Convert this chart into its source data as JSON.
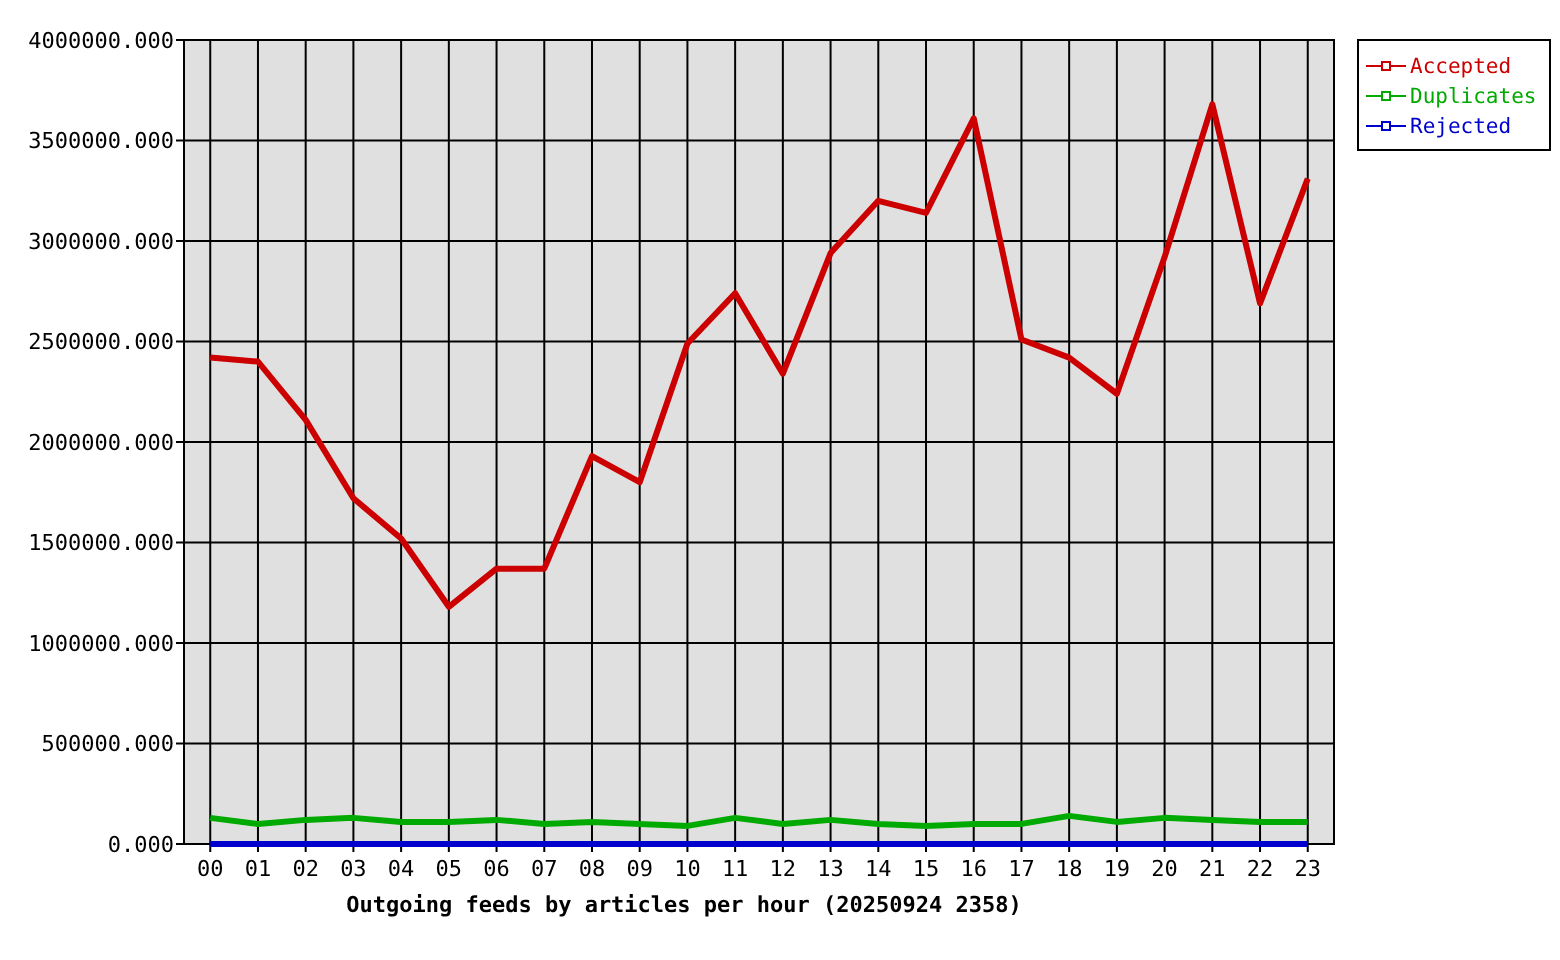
{
  "chart_data": {
    "type": "line",
    "title": "Outgoing feeds by articles per hour (20250924 2358)",
    "categories": [
      "00",
      "01",
      "02",
      "03",
      "04",
      "05",
      "06",
      "07",
      "08",
      "09",
      "10",
      "11",
      "12",
      "13",
      "14",
      "15",
      "16",
      "17",
      "18",
      "19",
      "20",
      "21",
      "22",
      "23"
    ],
    "series": [
      {
        "name": "Accepted",
        "color": "#cc0000",
        "values": [
          2420000,
          2400000,
          2110000,
          1720000,
          1520000,
          1180000,
          1370000,
          1370000,
          1930000,
          1800000,
          2490000,
          2740000,
          2340000,
          2940000,
          3200000,
          3140000,
          3610000,
          2510000,
          2420000,
          2240000,
          2920000,
          3680000,
          2690000,
          3310000
        ]
      },
      {
        "name": "Duplicates",
        "color": "#00aa00",
        "values": [
          130000,
          100000,
          120000,
          130000,
          110000,
          110000,
          120000,
          100000,
          110000,
          100000,
          90000,
          130000,
          100000,
          120000,
          100000,
          90000,
          100000,
          100000,
          140000,
          110000,
          130000,
          120000,
          110000,
          110000
        ]
      },
      {
        "name": "Rejected",
        "color": "#0000cc",
        "values": [
          0,
          0,
          0,
          0,
          0,
          0,
          0,
          0,
          0,
          0,
          0,
          0,
          0,
          0,
          0,
          0,
          0,
          0,
          0,
          0,
          0,
          0,
          0,
          0
        ]
      }
    ],
    "ylim": [
      0,
      4000000
    ],
    "yticks": [
      {
        "value": 0,
        "label": "0.000"
      },
      {
        "value": 500000,
        "label": "500000.000"
      },
      {
        "value": 1000000,
        "label": "1000000.000"
      },
      {
        "value": 1500000,
        "label": "1500000.000"
      },
      {
        "value": 2000000,
        "label": "2000000.000"
      },
      {
        "value": 2500000,
        "label": "2500000.000"
      },
      {
        "value": 3000000,
        "label": "3000000.000"
      },
      {
        "value": 3500000,
        "label": "3500000.000"
      },
      {
        "value": 4000000,
        "label": "4000000.000"
      }
    ],
    "grid": true,
    "legend": "top right",
    "line_style": "solid"
  }
}
